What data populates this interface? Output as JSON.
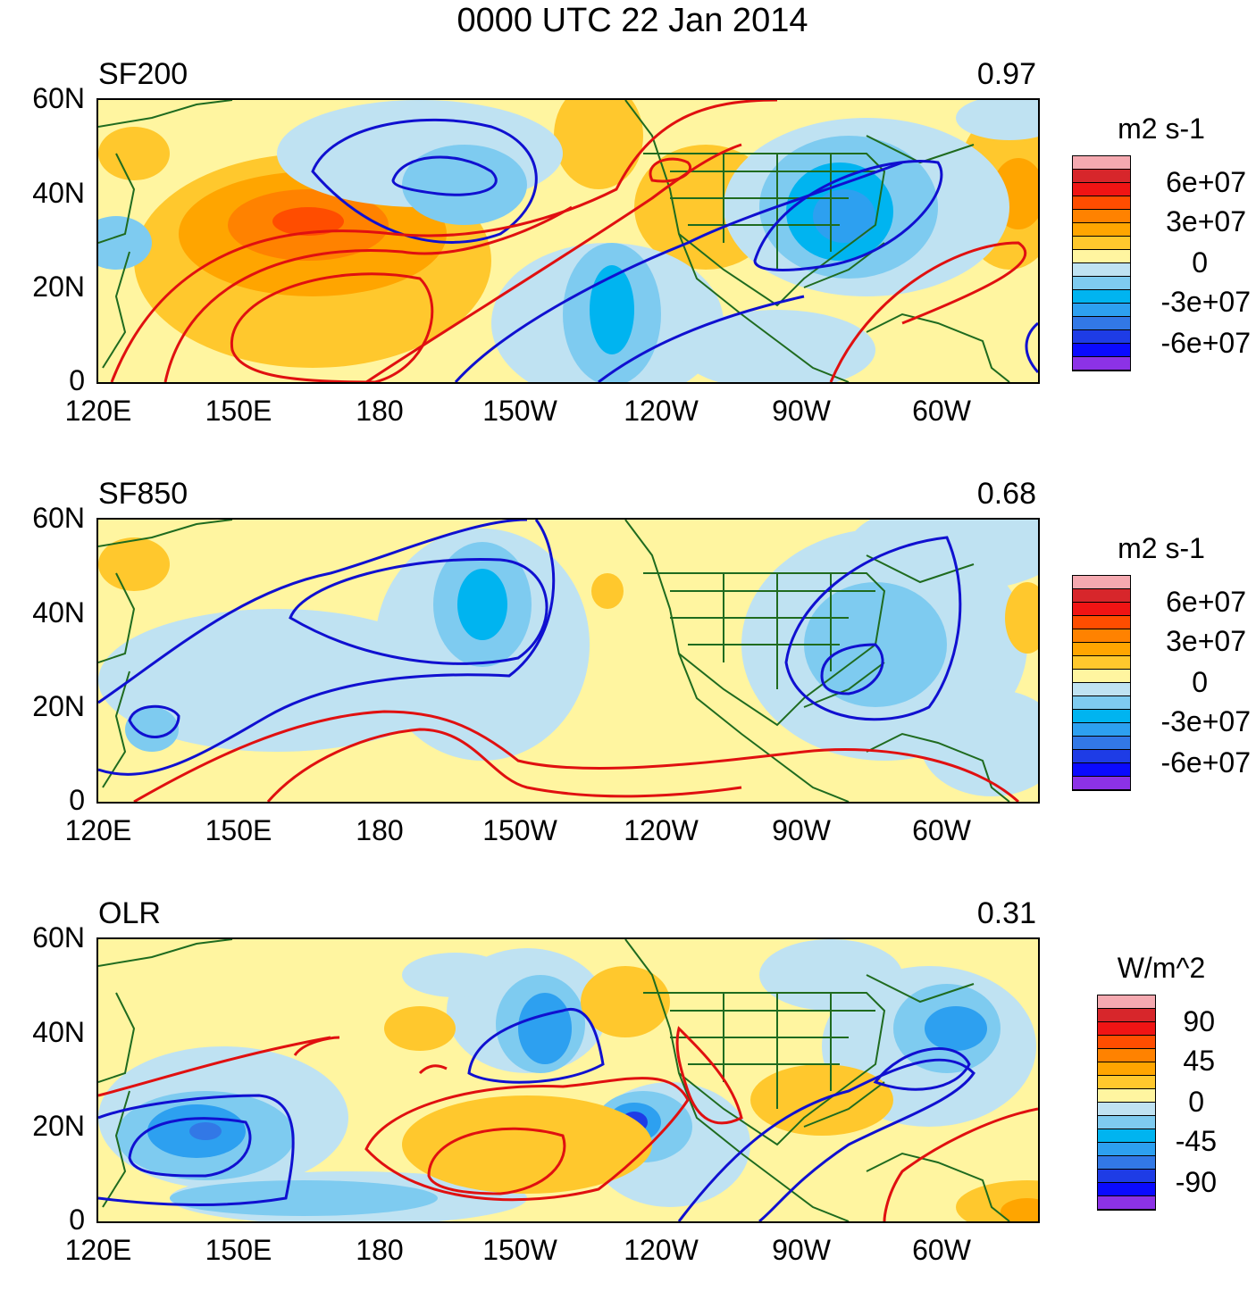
{
  "title": "0000 UTC 22 Jan 2014",
  "x_ticks": [
    "120E",
    "150E",
    "180",
    "150W",
    "120W",
    "90W",
    "60W"
  ],
  "y_ticks": [
    "60N",
    "40N",
    "20N",
    "0"
  ],
  "panels": [
    {
      "name": "SF200",
      "corr": "0.97",
      "units": "m2 s-1",
      "cb_labels": [
        "6e+07",
        "3e+07",
        "0",
        "-3e+07",
        "-6e+07"
      ]
    },
    {
      "name": "SF850",
      "corr": "0.68",
      "units": "m2 s-1",
      "cb_labels": [
        "6e+07",
        "3e+07",
        "0",
        "-3e+07",
        "-6e+07"
      ]
    },
    {
      "name": "OLR",
      "corr": "0.31",
      "units": "W/m^2",
      "cb_labels": [
        "90",
        "45",
        "0",
        "-45",
        "-90"
      ]
    }
  ],
  "colors": {
    "palette": [
      "#f5a9b0",
      "#d7262b",
      "#f01414",
      "#ff4d00",
      "#ff8200",
      "#ffa500",
      "#ffc82d",
      "#fff5a0",
      "#bfe2f2",
      "#7ecbf0",
      "#00b4f0",
      "#2da0f0",
      "#3278e6",
      "#1e3ce6",
      "#0a0aff",
      "#8c32e6"
    ],
    "land": "#1f6b1f",
    "contour_pos": "#e01010",
    "contour_neg": "#1010d0"
  }
}
